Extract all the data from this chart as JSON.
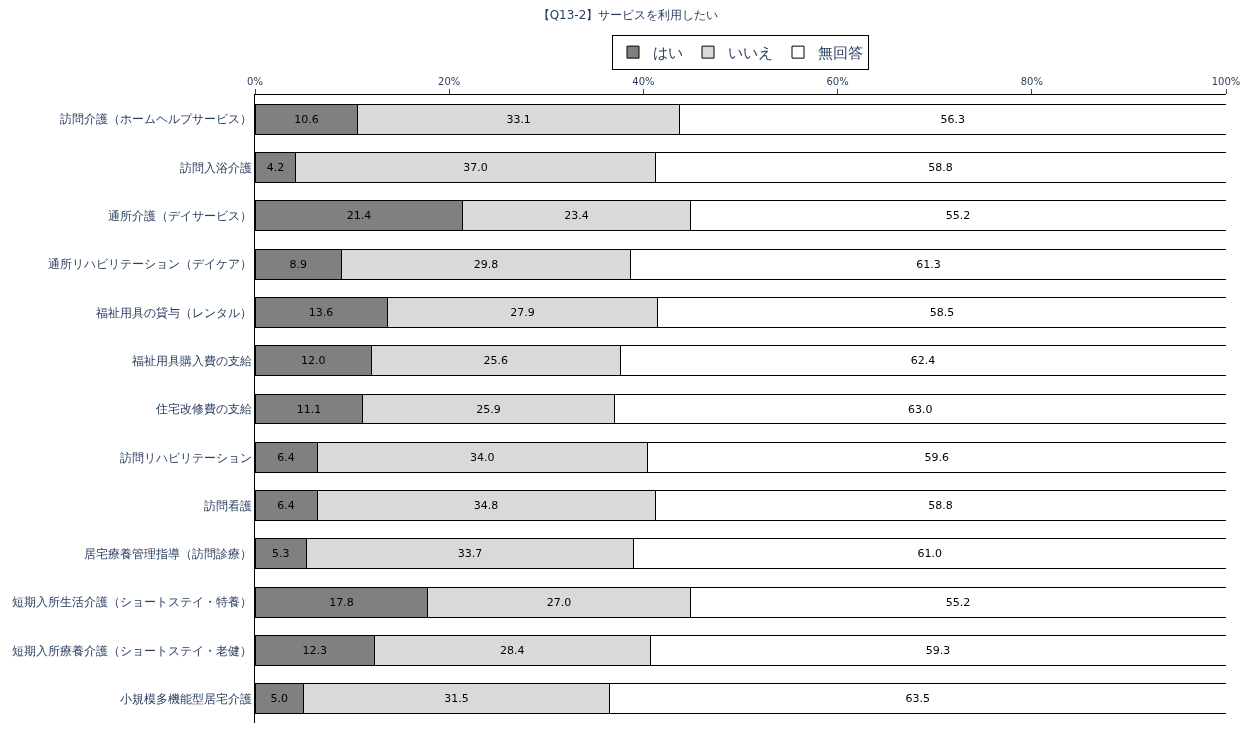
{
  "chart_data": {
    "type": "bar",
    "orientation": "horizontal",
    "stacked": true,
    "title": "【Q13-2】サービスを利用したい",
    "categories": [
      "訪問介護（ホームヘルプサービス）",
      "訪問入浴介護",
      "通所介護（デイサービス）",
      "通所リハビリテーション（デイケア）",
      "福祉用具の貸与（レンタル）",
      "福祉用具購入費の支給",
      "住宅改修費の支給",
      "訪問リハビリテーション",
      "訪問看護",
      "居宅療養管理指導（訪問診療）",
      "短期入所生活介護（ショートステイ・特養）",
      "短期入所療養介護（ショートステイ・老健）",
      "小規模多機能型居宅介護"
    ],
    "series": [
      {
        "name": "はい",
        "color": "#808080",
        "values": [
          10.6,
          4.2,
          21.4,
          8.9,
          13.6,
          12.0,
          11.1,
          6.4,
          6.4,
          5.3,
          17.8,
          12.3,
          5.0
        ],
        "value_labels": [
          "10.6",
          "4.2",
          "21.4",
          "8.9",
          "13.6",
          "12.0",
          "11.1",
          "6.4",
          "6.4",
          "5.3",
          "17.8",
          "12.3",
          "5.0"
        ]
      },
      {
        "name": "いいえ",
        "color": "#d9d9d9",
        "values": [
          33.1,
          37.0,
          23.4,
          29.8,
          27.9,
          25.6,
          25.9,
          34.0,
          34.8,
          33.7,
          27.0,
          28.4,
          31.5
        ],
        "value_labels": [
          "33.1",
          "37.0",
          "23.4",
          "29.8",
          "27.9",
          "25.6",
          "25.9",
          "34.0",
          "34.8",
          "33.7",
          "27.0",
          "28.4",
          "31.5"
        ]
      },
      {
        "name": "無回答",
        "color": "#ffffff",
        "values": [
          56.3,
          58.8,
          55.2,
          61.3,
          58.5,
          62.4,
          63.0,
          59.6,
          58.8,
          61.0,
          55.2,
          59.3,
          63.5
        ],
        "value_labels": [
          "56.3",
          "58.8",
          "55.2",
          "61.3",
          "58.5",
          "62.4",
          "63.0",
          "59.6",
          "58.8",
          "61.0",
          "55.2",
          "59.3",
          "63.5"
        ]
      }
    ],
    "xlim": [
      0,
      100
    ],
    "xticks": [
      {
        "value": 0,
        "label": "0%"
      },
      {
        "value": 20,
        "label": "20%"
      },
      {
        "value": 40,
        "label": "40%"
      },
      {
        "value": 60,
        "label": "60%"
      },
      {
        "value": 80,
        "label": "80%"
      },
      {
        "value": 100,
        "label": "100%"
      }
    ],
    "legend": "top"
  }
}
